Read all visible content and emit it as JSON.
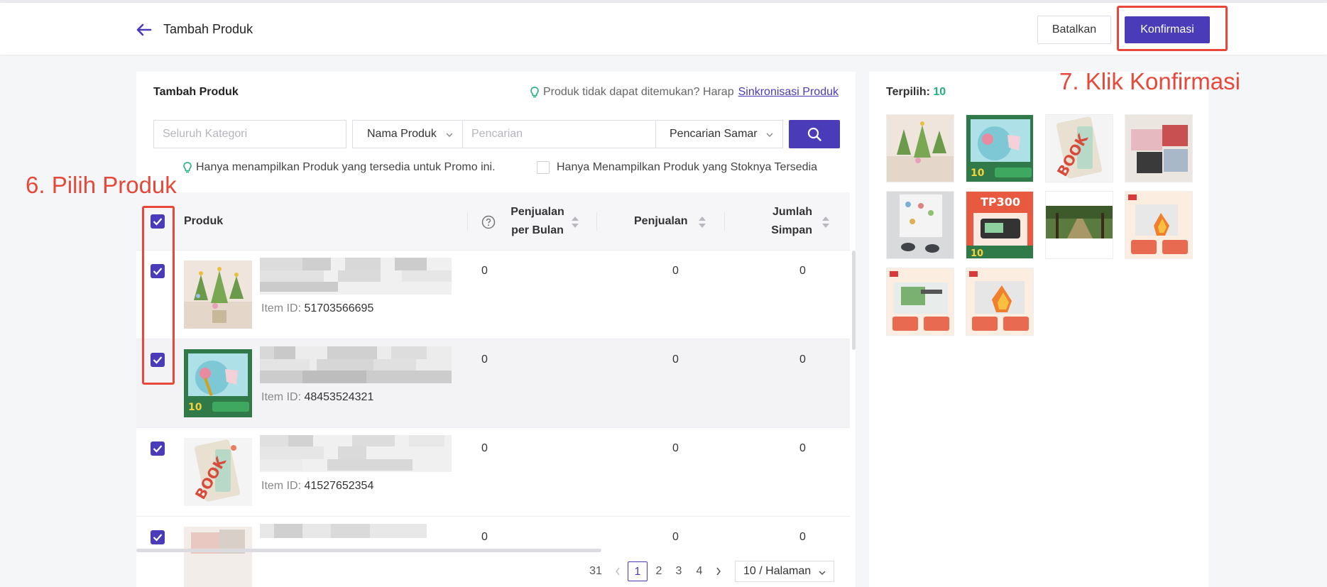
{
  "header": {
    "title": "Tambah Produk",
    "cancel_label": "Batalkan",
    "confirm_label": "Konfirmasi"
  },
  "annotations": {
    "step6": "6. Pilih Produk",
    "step7": "7. Klik Konfirmasi"
  },
  "panel": {
    "title": "Tambah Produk",
    "sync_hint": "Produk tidak dapat ditemukan? Harap",
    "sync_link": "Sinkronisasi Produk"
  },
  "filters": {
    "category_placeholder": "Seluruh Kategori",
    "field_select": "Nama Produk",
    "search_placeholder": "Pencarian",
    "mode_select": "Pencarian Samar"
  },
  "hints": {
    "promo_only": "Hanya menampilkan Produk yang tersedia untuk Promo ini.",
    "stock_only": "Hanya Menampilkan Produk yang Stoknya Tersedia"
  },
  "table": {
    "col_product": "Produk",
    "col_monthly_sales_1": "Penjualan",
    "col_monthly_sales_2": "per Bulan",
    "col_sales": "Penjualan",
    "col_saved_1": "Jumlah",
    "col_saved_2": "Simpan",
    "item_id_label": "Item ID: ",
    "rows": [
      {
        "item_id": "51703566695",
        "monthly_sales": "0",
        "sales": "0",
        "saved": "0"
      },
      {
        "item_id": "48453524321",
        "monthly_sales": "0",
        "sales": "0",
        "saved": "0"
      },
      {
        "item_id": "41527652354",
        "monthly_sales": "0",
        "sales": "0",
        "saved": "0"
      },
      {
        "item_id": "",
        "monthly_sales": "0",
        "sales": "0",
        "saved": "0"
      }
    ]
  },
  "pagination": {
    "total": "31",
    "pages": [
      "1",
      "2",
      "3",
      "4"
    ],
    "current": "1",
    "page_size": "10 / Halaman"
  },
  "selected": {
    "label": "Terpilih: ",
    "count": "10"
  },
  "colors": {
    "accent": "#4a3bb8",
    "annotation": "#e8483a",
    "selected_count": "#22b07d"
  }
}
